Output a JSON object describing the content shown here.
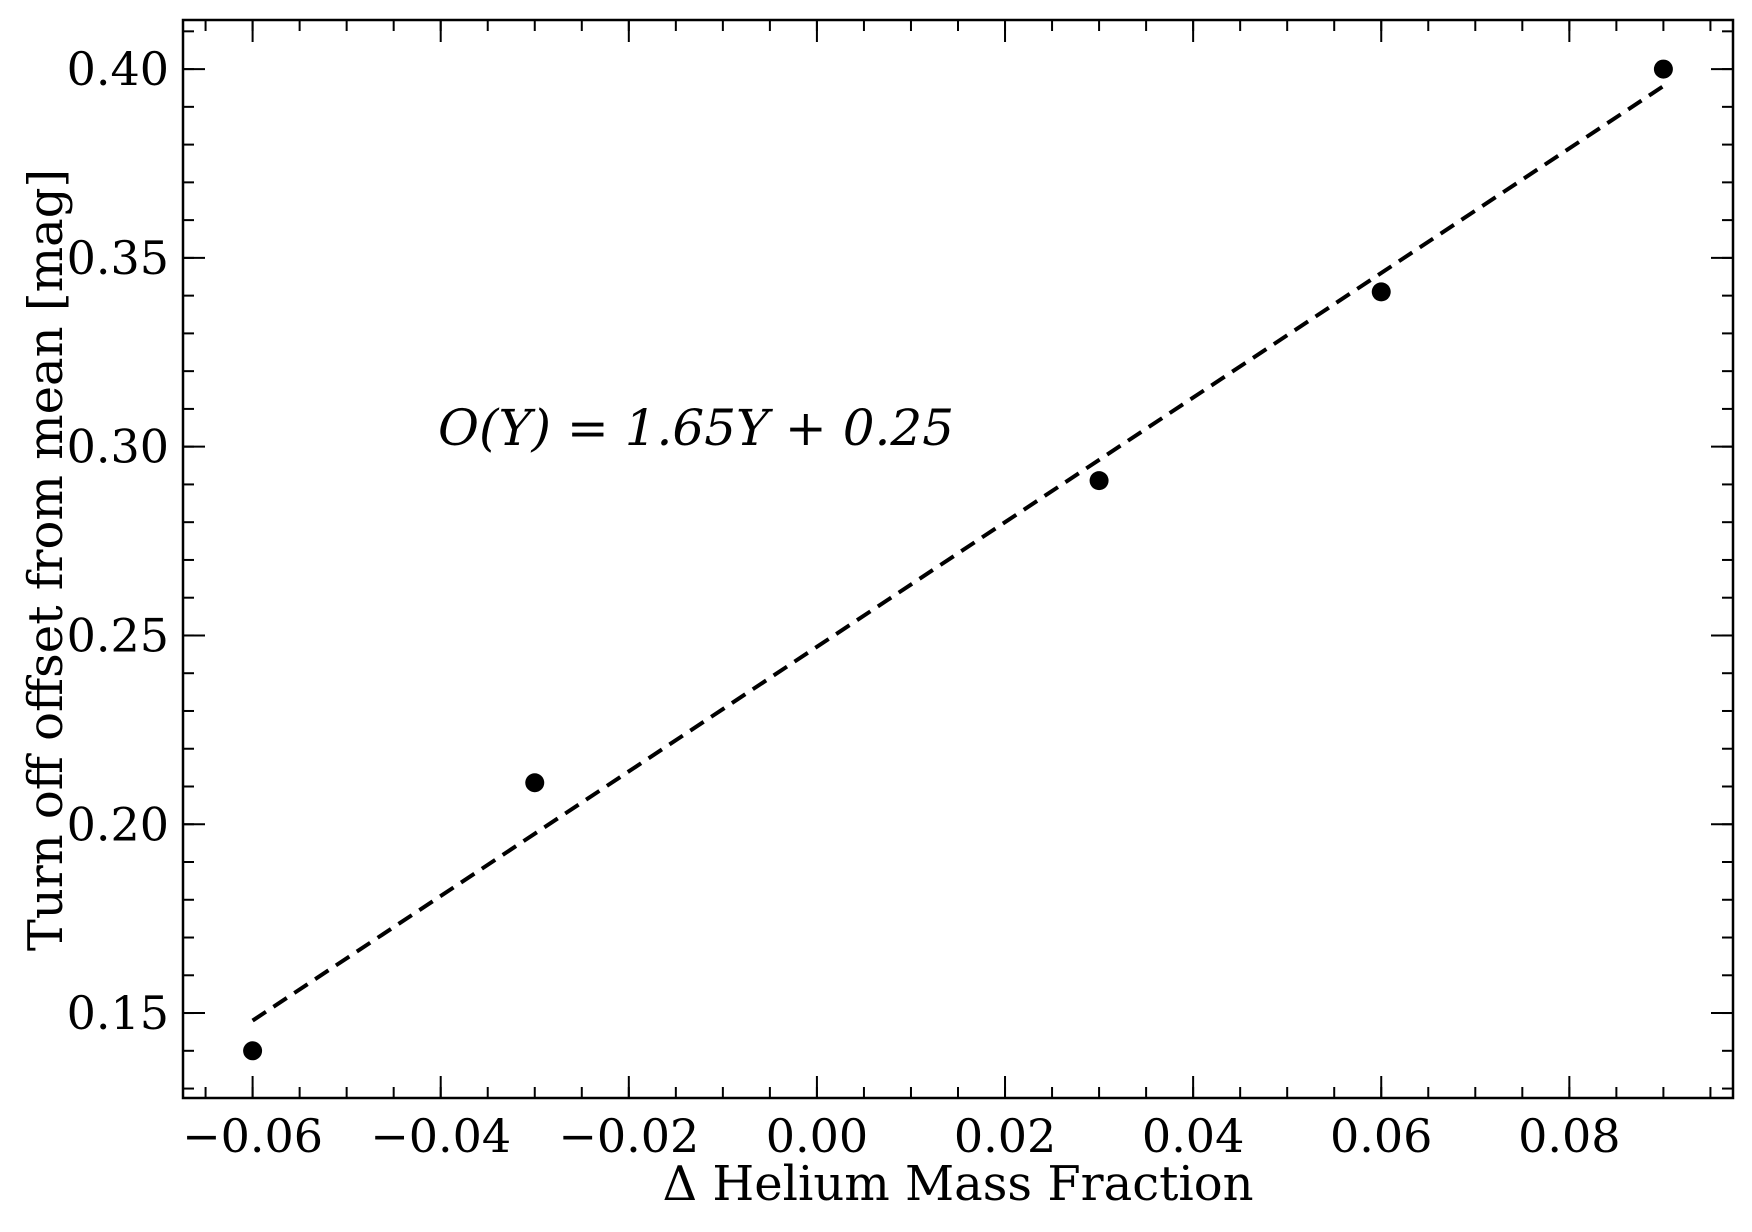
{
  "chart_data": {
    "type": "scatter",
    "title": "",
    "xlabel": "Δ Helium Mass Fraction",
    "ylabel": "Turn off offset from mean [mag]",
    "xlim": [
      -0.0674,
      0.0974
    ],
    "ylim": [
      0.1275,
      0.413
    ],
    "xticks": [
      -0.06,
      -0.04,
      -0.02,
      0.0,
      0.02,
      0.04,
      0.06,
      0.08
    ],
    "xtick_labels": [
      "−0.06",
      "−0.04",
      "−0.02",
      "0.00",
      "0.02",
      "0.04",
      "0.06",
      "0.08"
    ],
    "yticks": [
      0.15,
      0.2,
      0.25,
      0.3,
      0.35,
      0.4
    ],
    "ytick_labels": [
      "0.15",
      "0.20",
      "0.25",
      "0.30",
      "0.35",
      "0.40"
    ],
    "x_minor_step": 0.005,
    "y_minor_step": 0.01,
    "grid": false,
    "series": [
      {
        "name": "data",
        "type": "scatter",
        "color": "#000000",
        "x": [
          -0.06,
          -0.03,
          0.03,
          0.06,
          0.09
        ],
        "y": [
          0.14,
          0.211,
          0.291,
          0.341,
          0.4
        ]
      },
      {
        "name": "fit",
        "type": "line",
        "style": "dashed",
        "color": "#000000",
        "x": [
          -0.06,
          0.09
        ],
        "y": [
          0.148,
          0.3955
        ]
      }
    ],
    "annotation": "O(Y) = 1.65Y + 0.25"
  }
}
